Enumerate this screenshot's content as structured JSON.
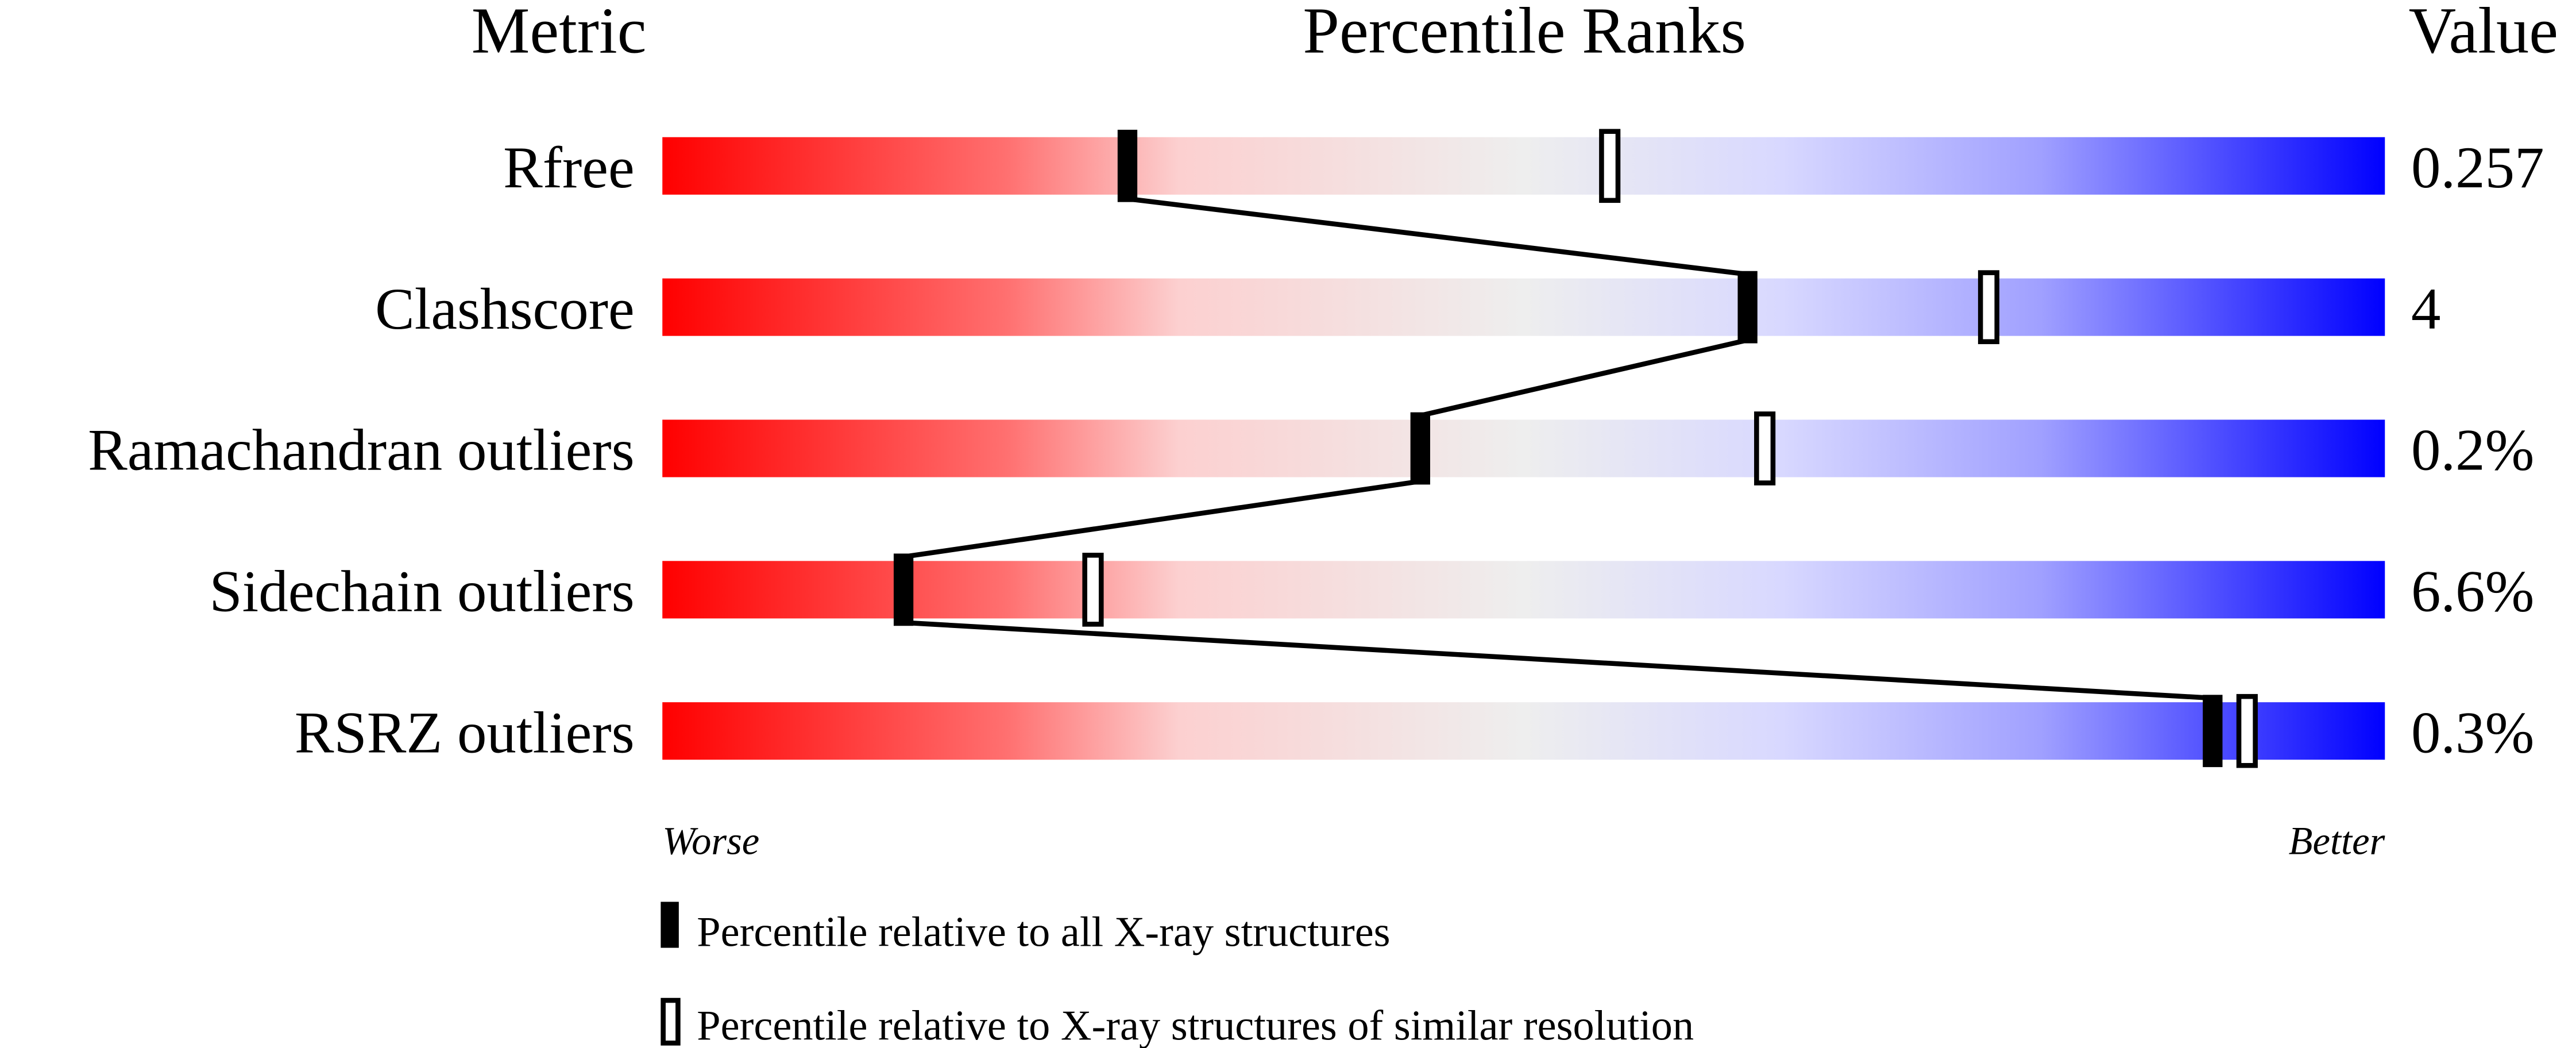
{
  "chart_data": {
    "type": "percentile-slider",
    "headers": {
      "metric": "Metric",
      "ranks": "Percentile Ranks",
      "value": "Value"
    },
    "axis": {
      "left_label": "Worse",
      "right_label": "Better",
      "range": [
        0,
        100
      ]
    },
    "gradient_colors": [
      "#ff0000",
      "#ff7070",
      "#fcd0d0",
      "#eeeeee",
      "#d8d8ff",
      "#a0a0ff",
      "#0000ff"
    ],
    "metrics": [
      {
        "name": "Rfree",
        "value": "0.257",
        "percentile_all": 27,
        "percentile_similar": 55
      },
      {
        "name": "Clashscore",
        "value": "4",
        "percentile_all": 63,
        "percentile_similar": 77
      },
      {
        "name": "Ramachandran outliers",
        "value": "0.2%",
        "percentile_all": 44,
        "percentile_similar": 64
      },
      {
        "name": "Sidechain outliers",
        "value": "6.6%",
        "percentile_all": 14,
        "percentile_similar": 25
      },
      {
        "name": "RSRZ outliers",
        "value": "0.3%",
        "percentile_all": 90,
        "percentile_similar": 92
      }
    ],
    "legend": [
      {
        "marker": "filled",
        "label": "Percentile relative to all X-ray structures"
      },
      {
        "marker": "open",
        "label": "Percentile relative to X-ray structures of similar resolution"
      }
    ]
  }
}
